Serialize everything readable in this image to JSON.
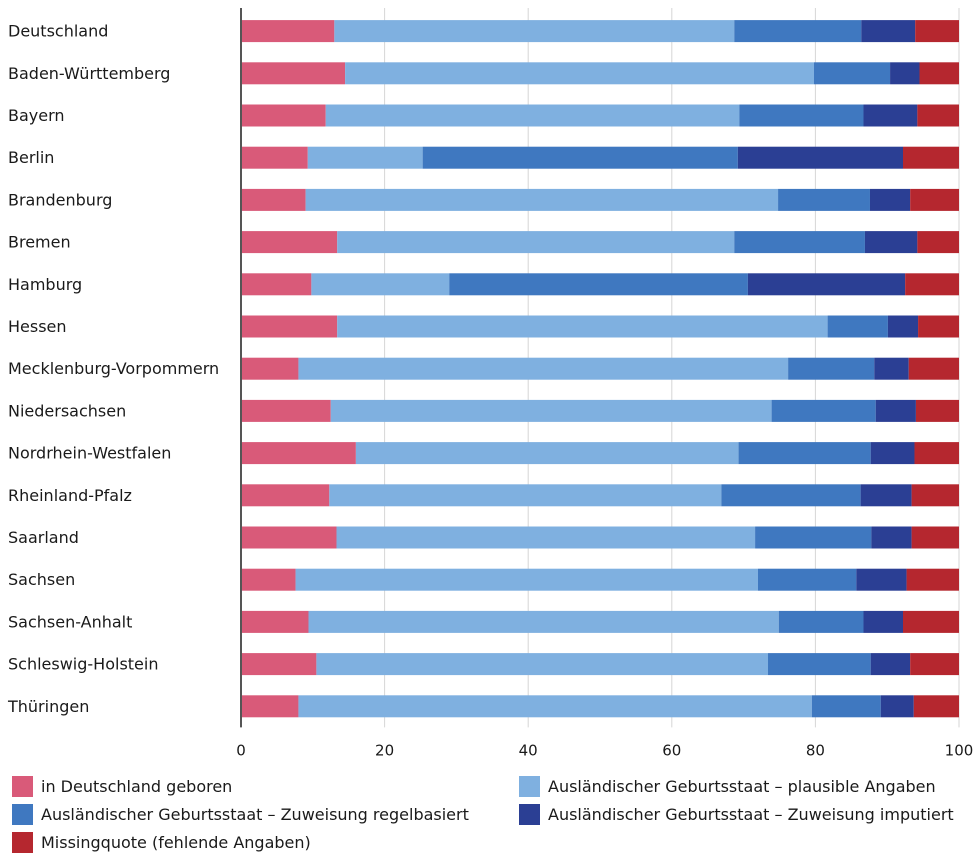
{
  "chart_data": {
    "type": "bar",
    "orientation": "horizontal",
    "stacked": true,
    "categories": [
      "Deutschland",
      "Baden-Württemberg",
      "Bayern",
      "Berlin",
      "Brandenburg",
      "Bremen",
      "Hamburg",
      "Hessen",
      "Mecklenburg-Vorpommern",
      "Niedersachsen",
      "Nordrhein-Westfalen",
      "Rheinland-Pfalz",
      "Saarland",
      "Sachsen",
      "Sachsen-Anhalt",
      "Schleswig-Holstein",
      "Thüringen"
    ],
    "series": [
      {
        "name": "in Deutschland geboren",
        "color": "#d95a79",
        "values": [
          13.0,
          14.5,
          11.8,
          9.3,
          9.0,
          13.4,
          9.8,
          13.4,
          8.0,
          12.5,
          16.0,
          12.3,
          13.3,
          7.6,
          9.4,
          10.5,
          8.0
        ]
      },
      {
        "name": "Ausländischer Geburtsstaat – plausible Angaben",
        "color": "#7fb0e0",
        "values": [
          55.7,
          65.3,
          57.6,
          16.0,
          65.8,
          55.3,
          19.2,
          68.3,
          68.2,
          61.4,
          53.3,
          54.6,
          58.3,
          64.4,
          65.5,
          62.9,
          71.5
        ]
      },
      {
        "name": "Ausländischer Geburtsstaat – Zuweisung regelbasiert",
        "color": "#3f78c0",
        "values": [
          17.7,
          10.6,
          17.3,
          43.9,
          12.8,
          18.2,
          41.6,
          8.4,
          12.0,
          14.5,
          18.4,
          19.4,
          16.2,
          13.7,
          11.8,
          14.3,
          9.6
        ]
      },
      {
        "name": "Ausländischer Geburtsstaat – Zuweisung imputiert",
        "color": "#2b3f94",
        "values": [
          7.5,
          4.1,
          7.5,
          23.0,
          5.6,
          7.3,
          21.9,
          4.2,
          4.8,
          5.6,
          6.1,
          7.1,
          5.6,
          7.0,
          5.5,
          5.5,
          4.6
        ]
      },
      {
        "name": "Missingquote (fehlende Angaben)",
        "color": "#b5272f",
        "values": [
          6.1,
          5.5,
          5.8,
          7.8,
          6.8,
          5.8,
          7.5,
          5.7,
          7.0,
          6.0,
          6.2,
          6.6,
          6.6,
          7.3,
          7.8,
          6.8,
          6.3
        ]
      }
    ],
    "x_ticks": [
      "0",
      "20",
      "40",
      "60",
      "80",
      "100"
    ],
    "xlim": [
      0,
      100
    ],
    "legend_position": "bottom",
    "grid": "vertical"
  }
}
